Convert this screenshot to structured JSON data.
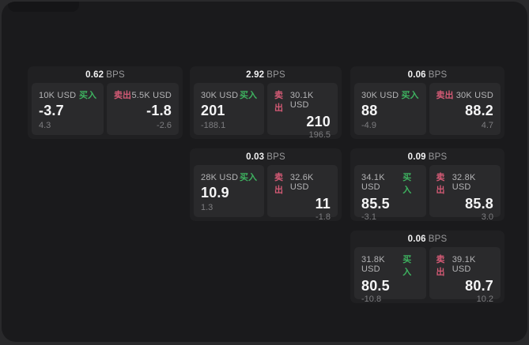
{
  "colors": {
    "buy_green": "#3eb360",
    "sell_red": "#d45a75",
    "window_bg": "#1a1a1c",
    "card_bg": "#202022",
    "panel_bg": "#2a2a2c"
  },
  "cards": [
    {
      "spread": "0.62",
      "spread_unit": "BPS",
      "buy": {
        "amount": "10K USD",
        "side_label": "买入",
        "price": "-3.7",
        "delta": "4.3"
      },
      "sell": {
        "side_label": "卖出",
        "amount": "5.5K USD",
        "price": "-1.8",
        "delta": "-2.6"
      }
    },
    {
      "spread": "2.92",
      "spread_unit": "BPS",
      "buy": {
        "amount": "30K USD",
        "side_label": "买入",
        "price": "201",
        "delta": "-188.1"
      },
      "sell": {
        "side_label": "卖出",
        "amount": "30.1K USD",
        "price": "210",
        "delta": "196.5"
      }
    },
    {
      "spread": "0.06",
      "spread_unit": "BPS",
      "buy": {
        "amount": "30K USD",
        "side_label": "买入",
        "price": "88",
        "delta": "-4.9"
      },
      "sell": {
        "side_label": "卖出",
        "amount": "30K USD",
        "price": "88.2",
        "delta": "4.7"
      }
    },
    {
      "spread": "0.03",
      "spread_unit": "BPS",
      "buy": {
        "amount": "28K USD",
        "side_label": "买入",
        "price": "10.9",
        "delta": "1.3"
      },
      "sell": {
        "side_label": "卖出",
        "amount": "32.6K USD",
        "price": "11",
        "delta": "-1.8"
      }
    },
    {
      "spread": "0.09",
      "spread_unit": "BPS",
      "buy": {
        "amount": "34.1K USD",
        "side_label": "买入",
        "price": "85.5",
        "delta": "-3.1"
      },
      "sell": {
        "side_label": "卖出",
        "amount": "32.8K USD",
        "price": "85.8",
        "delta": "3.0"
      }
    },
    {
      "spread": "0.06",
      "spread_unit": "BPS",
      "buy": {
        "amount": "31.8K USD",
        "side_label": "买入",
        "price": "80.5",
        "delta": "-10.8"
      },
      "sell": {
        "side_label": "卖出",
        "amount": "39.1K USD",
        "price": "80.7",
        "delta": "10.2"
      }
    }
  ]
}
